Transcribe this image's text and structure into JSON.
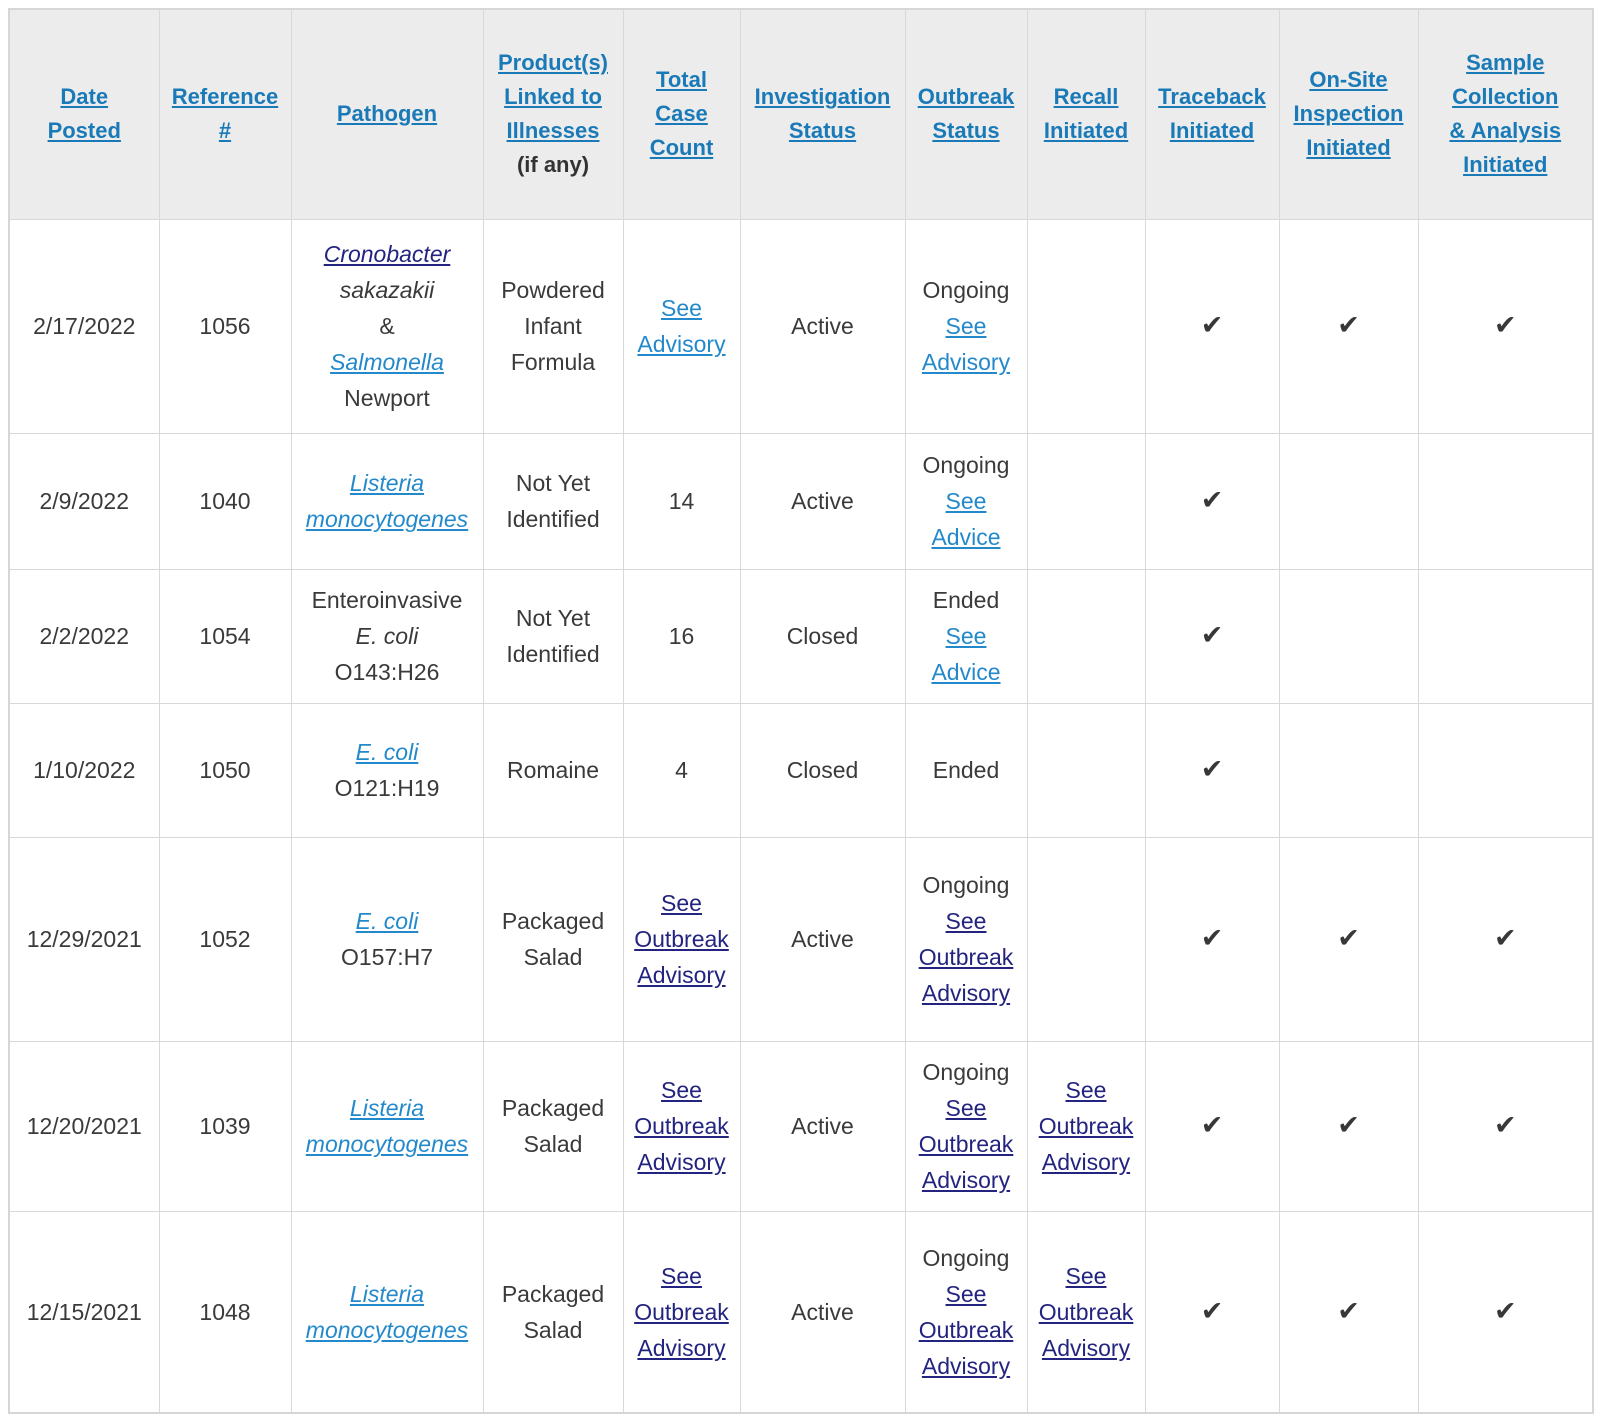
{
  "colors": {
    "header_background": "#ececec",
    "header_link_blue": "#1a7ab8",
    "body_link_blue": "#2389cb",
    "visited_link_navy": "#232380",
    "body_text": "#3a3a3a",
    "border_gray": "#d8d8d8"
  },
  "icons": {
    "check_mark": "✔"
  },
  "table": {
    "columns": [
      {
        "id": "date_posted",
        "label": "Date Posted"
      },
      {
        "id": "reference",
        "label": "Reference #"
      },
      {
        "id": "pathogen",
        "label": "Pathogen"
      },
      {
        "id": "product",
        "label": "Product(s) Linked to Illnesses",
        "suffix": "(if any)"
      },
      {
        "id": "case_count",
        "label": "Total Case Count"
      },
      {
        "id": "investigation_status",
        "label": "Investigation Status"
      },
      {
        "id": "outbreak_status",
        "label": "Outbreak Status"
      },
      {
        "id": "recall",
        "label": "Recall Initiated"
      },
      {
        "id": "traceback",
        "label": "Traceback Initiated"
      },
      {
        "id": "onsite",
        "label": "On-Site Inspection Initiated"
      },
      {
        "id": "sample",
        "label": "Sample Collection & Analysis Initiated"
      }
    ],
    "rows": [
      {
        "date_posted": "2/17/2022",
        "reference": "1056",
        "pathogen": [
          {
            "text": "Cronobacter",
            "style": "link-visited-italic"
          },
          {
            "text": "sakazakii",
            "style": "italic"
          },
          {
            "text": "&",
            "style": "plain"
          },
          {
            "text": "Salmonella",
            "style": "link-italic"
          },
          {
            "text": "Newport",
            "style": "plain"
          }
        ],
        "product": "Powdered Infant Formula",
        "case_count": [
          {
            "text": "See Advisory",
            "style": "link"
          }
        ],
        "investigation_status": "Active",
        "outbreak_status": [
          {
            "text": "Ongoing",
            "style": "plain"
          },
          {
            "text": "See Advisory",
            "style": "link"
          }
        ],
        "recall": [],
        "traceback": true,
        "onsite": true,
        "sample": true
      },
      {
        "date_posted": "2/9/2022",
        "reference": "1040",
        "pathogen": [
          {
            "text": "Listeria monocytogenes",
            "style": "link-italic"
          }
        ],
        "product": "Not Yet Identified",
        "case_count": [
          {
            "text": "14",
            "style": "plain"
          }
        ],
        "investigation_status": "Active",
        "outbreak_status": [
          {
            "text": "Ongoing",
            "style": "plain"
          },
          {
            "text": "See Advice",
            "style": "link"
          }
        ],
        "recall": [],
        "traceback": true,
        "onsite": false,
        "sample": false
      },
      {
        "date_posted": "2/2/2022",
        "reference": "1054",
        "pathogen": [
          {
            "text": "Enteroinvasive",
            "style": "plain"
          },
          {
            "text": "E. coli",
            "style": "italic"
          },
          {
            "text": "O143:H26",
            "style": "plain"
          }
        ],
        "product": "Not Yet Identified",
        "case_count": [
          {
            "text": "16",
            "style": "plain"
          }
        ],
        "investigation_status": "Closed",
        "outbreak_status": [
          {
            "text": "Ended",
            "style": "plain"
          },
          {
            "text": "See Advice",
            "style": "link"
          }
        ],
        "recall": [],
        "traceback": true,
        "onsite": false,
        "sample": false
      },
      {
        "date_posted": "1/10/2022",
        "reference": "1050",
        "pathogen": [
          {
            "text": "E. coli",
            "style": "link-italic"
          },
          {
            "text": "O121:H19",
            "style": "plain"
          }
        ],
        "product": "Romaine",
        "case_count": [
          {
            "text": "4",
            "style": "plain"
          }
        ],
        "investigation_status": "Closed",
        "outbreak_status": [
          {
            "text": "Ended",
            "style": "plain"
          }
        ],
        "recall": [],
        "traceback": true,
        "onsite": false,
        "sample": false
      },
      {
        "date_posted": "12/29/2021",
        "reference": "1052",
        "pathogen": [
          {
            "text": "E. coli",
            "style": "link-italic"
          },
          {
            "text": "O157:H7",
            "style": "plain"
          }
        ],
        "product": "Packaged Salad",
        "case_count": [
          {
            "text": "See Outbreak Advisory",
            "style": "link-visited"
          }
        ],
        "investigation_status": "Active",
        "outbreak_status": [
          {
            "text": "Ongoing",
            "style": "plain"
          },
          {
            "text": "See Outbreak Advisory",
            "style": "link-visited"
          }
        ],
        "recall": [],
        "traceback": true,
        "onsite": true,
        "sample": true
      },
      {
        "date_posted": "12/20/2021",
        "reference": "1039",
        "pathogen": [
          {
            "text": "Listeria monocytogenes",
            "style": "link-italic"
          }
        ],
        "product": "Packaged Salad",
        "case_count": [
          {
            "text": "See Outbreak Advisory",
            "style": "link-visited"
          }
        ],
        "investigation_status": "Active",
        "outbreak_status": [
          {
            "text": "Ongoing",
            "style": "plain"
          },
          {
            "text": "See Outbreak Advisory",
            "style": "link-visited"
          }
        ],
        "recall": [
          {
            "text": "See Outbreak Advisory",
            "style": "link-visited"
          }
        ],
        "traceback": true,
        "onsite": true,
        "sample": true
      },
      {
        "date_posted": "12/15/2021",
        "reference": "1048",
        "pathogen": [
          {
            "text": "Listeria monocytogenes",
            "style": "link-italic"
          }
        ],
        "product": "Packaged Salad",
        "case_count": [
          {
            "text": "See Outbreak Advisory",
            "style": "link-visited"
          }
        ],
        "investigation_status": "Active",
        "outbreak_status": [
          {
            "text": "Ongoing",
            "style": "plain"
          },
          {
            "text": "See Outbreak Advisory",
            "style": "link-visited"
          }
        ],
        "recall": [
          {
            "text": "See Outbreak Advisory",
            "style": "link-visited"
          }
        ],
        "traceback": true,
        "onsite": true,
        "sample": true
      }
    ]
  }
}
